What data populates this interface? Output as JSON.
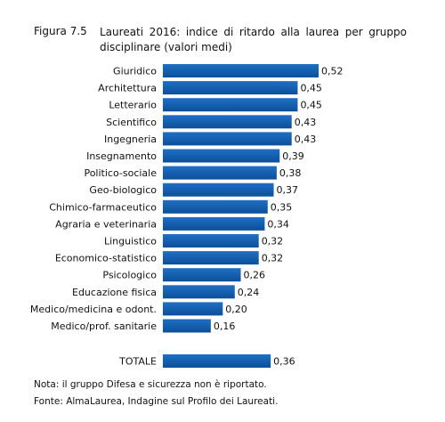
{
  "figure": {
    "label": "Figura 7.5",
    "title": "Laureati 2016: indice di ritardo alla laurea per gruppo disciplinare (valori medi)"
  },
  "chart_data": {
    "type": "bar",
    "orientation": "horizontal",
    "title": "Laureati 2016: indice di ritardo alla laurea per gruppo disciplinare (valori medi)",
    "categories": [
      "Giuridico",
      "Architettura",
      "Letterario",
      "Scientifico",
      "Ingegneria",
      "Insegnamento",
      "Politico-sociale",
      "Geo-biologico",
      "Chimico-farmaceutico",
      "Agraria e veterinaria",
      "Linguistico",
      "Economico-statistico",
      "Psicologico",
      "Educazione fisica",
      "Medico/medicina e odont.",
      "Medico/prof. sanitarie"
    ],
    "values": [
      0.52,
      0.45,
      0.45,
      0.43,
      0.43,
      0.39,
      0.38,
      0.37,
      0.35,
      0.34,
      0.32,
      0.32,
      0.26,
      0.24,
      0.2,
      0.16
    ],
    "value_labels": [
      "0,52",
      "0,45",
      "0,45",
      "0,43",
      "0,43",
      "0,39",
      "0,38",
      "0,37",
      "0,35",
      "0,34",
      "0,32",
      "0,32",
      "0,26",
      "0,24",
      "0,20",
      "0,16"
    ],
    "total": {
      "label": "TOTALE",
      "value": 0.36,
      "value_label": "0,36"
    },
    "xlim": [
      0,
      0.52
    ],
    "bar_color": "#1f6fc5",
    "bar_color_dark": "#0d4f99"
  },
  "notes": {
    "nota": "Nota: il gruppo Difesa e sicurezza non è riportato.",
    "fonte": "Fonte: AlmaLaurea, Indagine sul Profilo dei Laureati."
  }
}
